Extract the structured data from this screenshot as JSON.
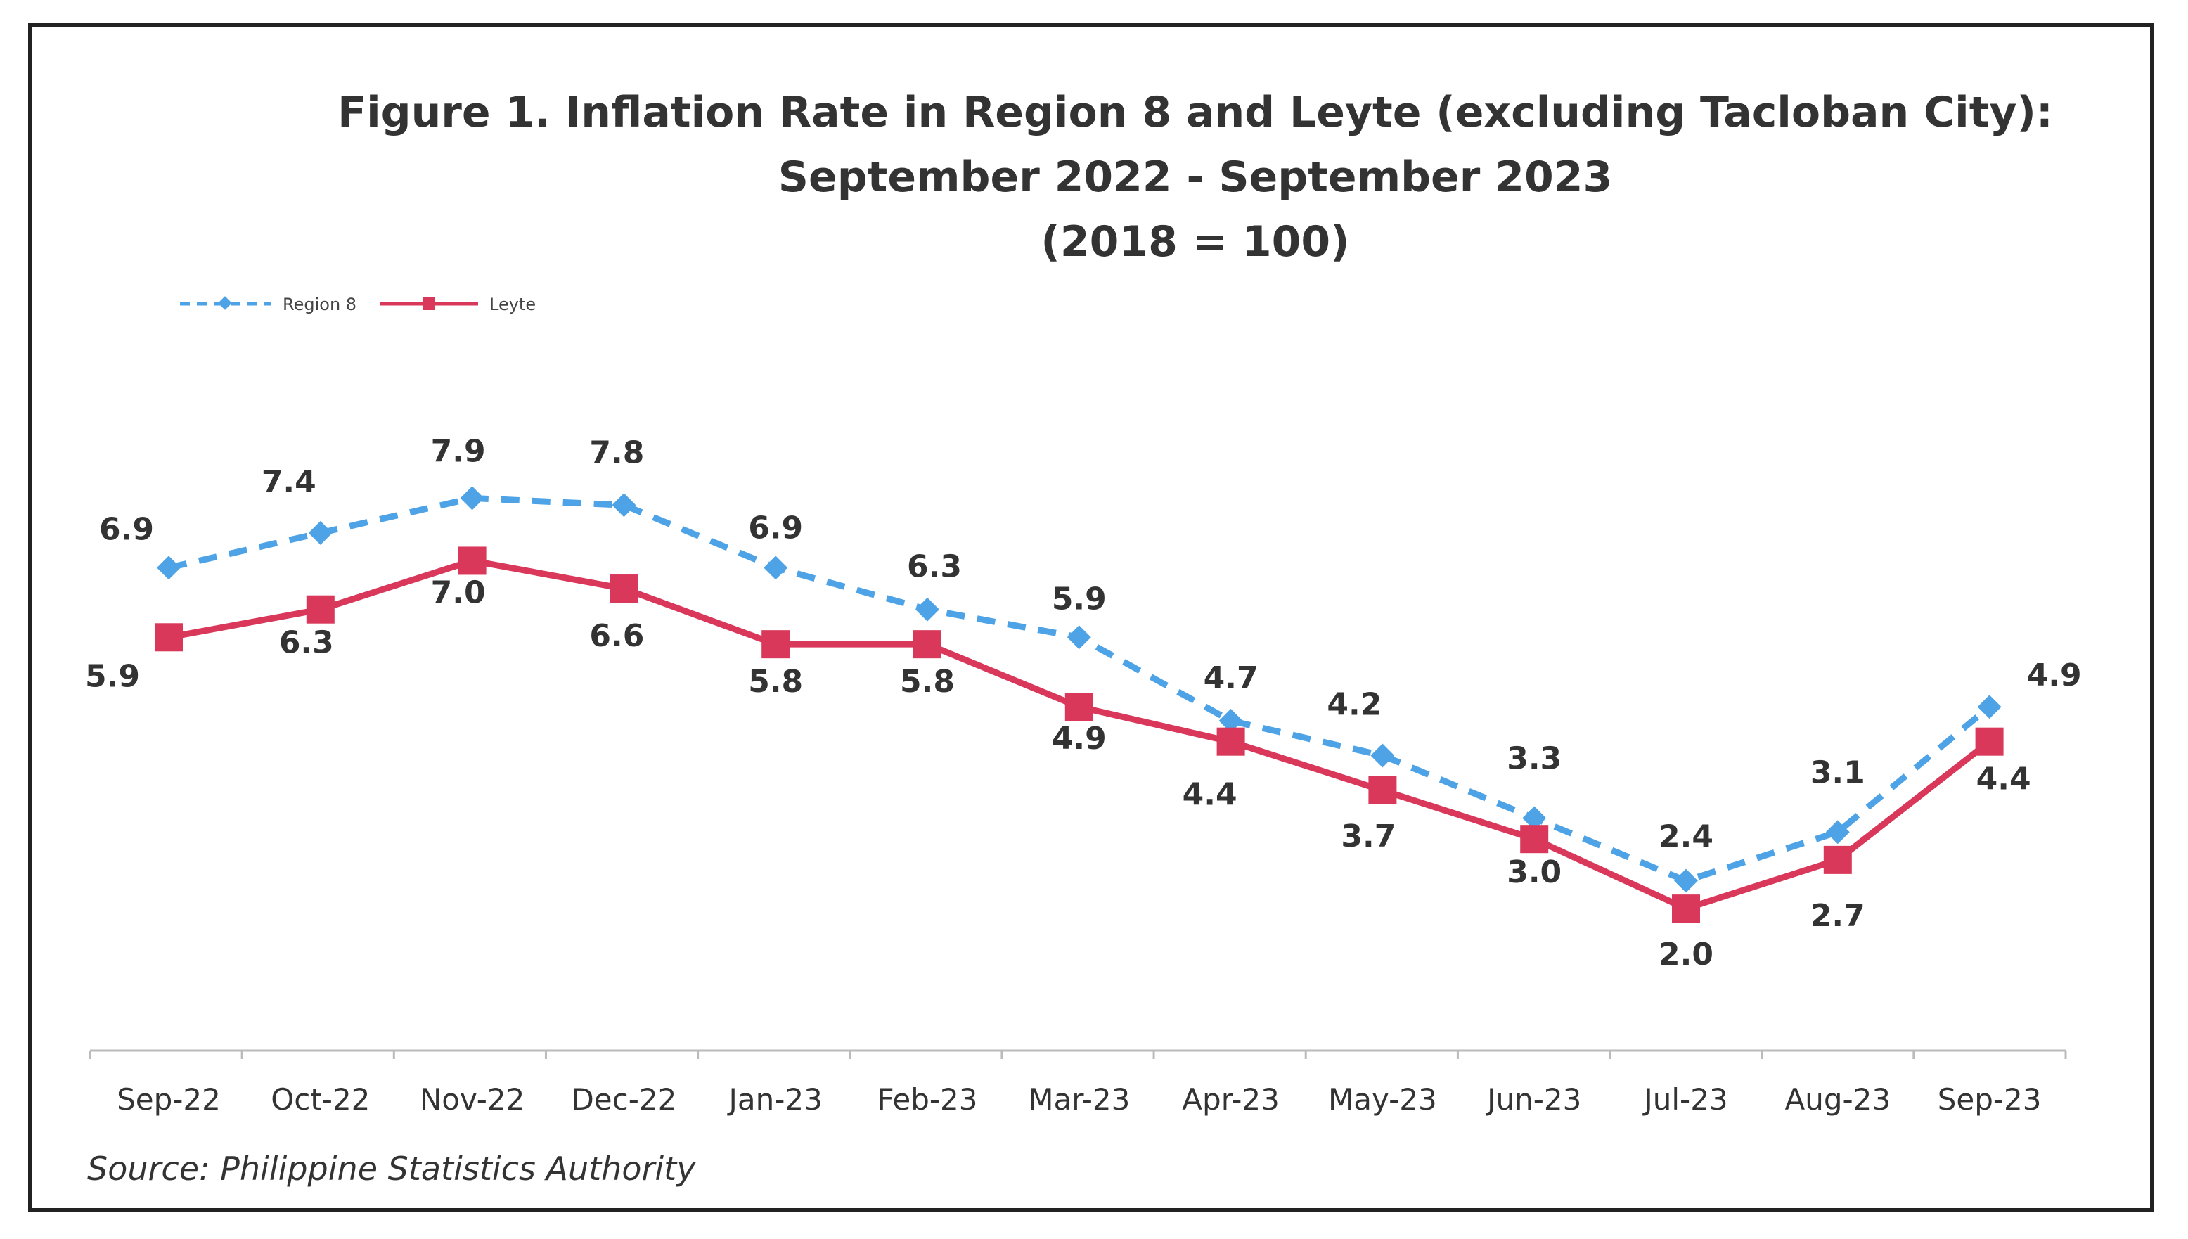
{
  "chart_data": {
    "type": "line",
    "title": [
      "Figure 1. Inflation Rate in Region 8 and Leyte (excluding Tacloban City):",
      "September 2022 - September 2023",
      "(2018 = 100)"
    ],
    "categories": [
      "Sep-22",
      "Oct-22",
      "Nov-22",
      "Dec-22",
      "Jan-23",
      "Feb-23",
      "Mar-23",
      "Apr-23",
      "May-23",
      "Jun-23",
      "Jul-23",
      "Aug-23",
      "Sep-23"
    ],
    "series": [
      {
        "name": "Region 8",
        "values": [
          6.9,
          7.4,
          7.9,
          7.8,
          6.9,
          6.3,
          5.9,
          4.7,
          4.2,
          3.3,
          2.4,
          3.1,
          4.9
        ],
        "labels": [
          "6.9",
          "7.4",
          "7.9",
          "7.8",
          "6.9",
          "6.3",
          "5.9",
          "4.7",
          "4.2",
          "3.3",
          "2.4",
          "3.1",
          "4.9"
        ],
        "color": "#4da3e6",
        "style": "dashed",
        "marker": "diamond"
      },
      {
        "name": "Leyte",
        "values": [
          5.9,
          6.3,
          7.0,
          6.6,
          5.8,
          5.8,
          4.9,
          4.4,
          3.7,
          3.0,
          2.0,
          2.7,
          4.4
        ],
        "labels": [
          "5.9",
          "6.3",
          "7.0",
          "6.6",
          "5.8",
          "5.8",
          "4.9",
          "4.4",
          "3.7",
          "3.0",
          "2.0",
          "2.7",
          "4.4"
        ],
        "color": "#d9385a",
        "style": "solid",
        "marker": "square"
      }
    ],
    "legend_position": "top-left",
    "grid": false,
    "source": "Source: Philippine Statistics Authority"
  }
}
